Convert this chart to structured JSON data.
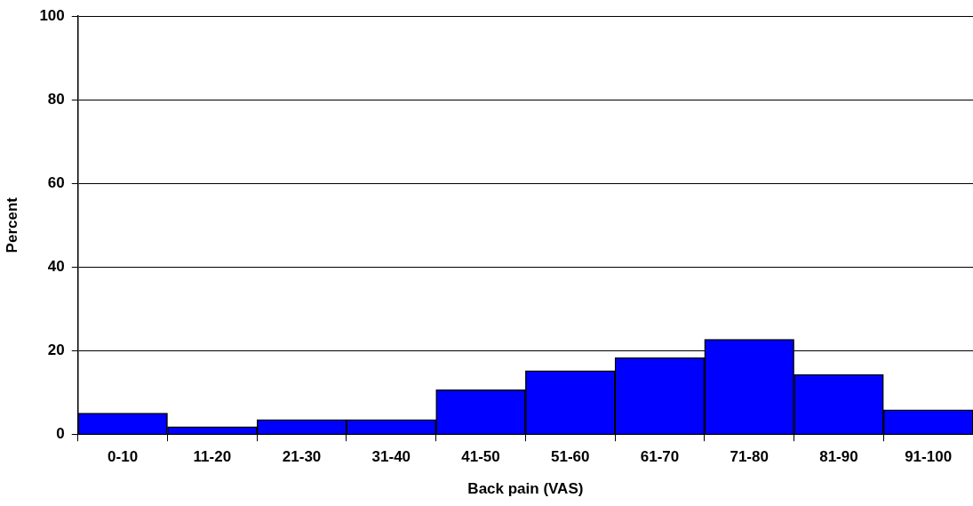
{
  "chart_data": {
    "type": "bar",
    "xlabel": "Back pain (VAS)",
    "ylabel": "Percent",
    "categories": [
      "0-10",
      "11-20",
      "21-30",
      "31-40",
      "41-50",
      "51-60",
      "61-70",
      "71-80",
      "81-90",
      "91-100"
    ],
    "values": [
      5.0,
      1.8,
      3.5,
      3.5,
      10.6,
      15.2,
      18.3,
      22.7,
      14.3,
      5.8
    ],
    "color": "#0000ff",
    "ylim": [
      0,
      100
    ],
    "yticks": [
      0,
      20,
      40,
      60,
      80,
      100
    ],
    "grid": "y",
    "legend": false
  }
}
